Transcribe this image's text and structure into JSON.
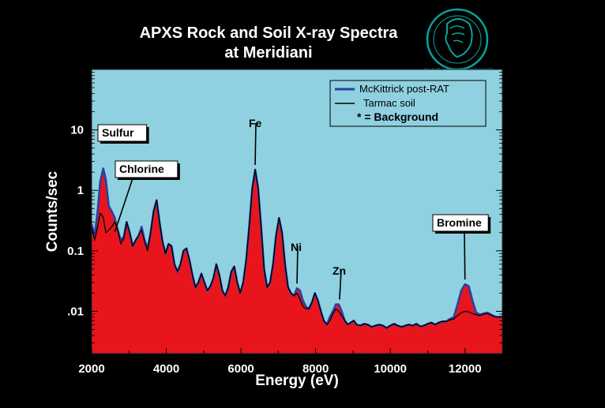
{
  "chart_data": {
    "type": "line",
    "title": "APXS Rock and Soil X-ray Spectra",
    "subtitle": "at Meridiani",
    "xlabel": "Energy (eV)",
    "ylabel": "Counts/sec",
    "xlim": [
      2000,
      13000
    ],
    "ylim": [
      0.002,
      100
    ],
    "yscale": "log",
    "x_ticks": [
      2000,
      4000,
      6000,
      8000,
      10000,
      12000
    ],
    "x_tick_labels": [
      "2000",
      "4000",
      "6000",
      "8000",
      "10000",
      "12000"
    ],
    "y_ticks": [
      0.01,
      0.1,
      1,
      10
    ],
    "y_tick_labels": [
      ".01",
      "0.1",
      "1",
      "10"
    ],
    "legend_position": "top-right",
    "legend_note": "* = Background",
    "colors": {
      "plot_bg": "#8fd1e0",
      "fill": "#e8151c",
      "mckittrick": "#2b3fa6",
      "tarmac": "#000000",
      "background": "#000000"
    },
    "series": [
      {
        "name": "McKittrick post-RAT",
        "color": "#2b3fa6",
        "x": [
          2000,
          2080,
          2160,
          2230,
          2310,
          2380,
          2460,
          2540,
          2620,
          2700,
          2780,
          2860,
          2940,
          3020,
          3100,
          3180,
          3260,
          3340,
          3420,
          3500,
          3580,
          3660,
          3740,
          3820,
          3900,
          3980,
          4060,
          4140,
          4220,
          4300,
          4380,
          4460,
          4540,
          4620,
          4700,
          4780,
          4860,
          4940,
          5020,
          5100,
          5180,
          5260,
          5340,
          5420,
          5500,
          5580,
          5660,
          5740,
          5820,
          5900,
          5980,
          6060,
          6140,
          6220,
          6300,
          6380,
          6460,
          6540,
          6620,
          6700,
          6780,
          6860,
          6940,
          7020,
          7100,
          7180,
          7260,
          7340,
          7420,
          7500,
          7580,
          7660,
          7740,
          7820,
          7900,
          7980,
          8060,
          8140,
          8220,
          8300,
          8380,
          8460,
          8540,
          8620,
          8700,
          8780,
          8860,
          8940,
          9020,
          9100,
          9200,
          9300,
          9400,
          9500,
          9600,
          9700,
          9800,
          9900,
          10000,
          10100,
          10200,
          10300,
          10400,
          10500,
          10600,
          10700,
          10800,
          10900,
          11000,
          11100,
          11200,
          11300,
          11400,
          11500,
          11600,
          11700,
          11800,
          11900,
          12000,
          12100,
          12200,
          12300,
          12400,
          12500,
          12600,
          12700,
          12800,
          12900,
          13000
        ],
        "y": [
          0.28,
          0.18,
          0.45,
          1.4,
          2.3,
          1.5,
          0.55,
          0.45,
          0.35,
          0.22,
          0.15,
          0.17,
          0.3,
          0.2,
          0.12,
          0.15,
          0.18,
          0.25,
          0.15,
          0.11,
          0.2,
          0.45,
          0.68,
          0.3,
          0.14,
          0.09,
          0.13,
          0.12,
          0.06,
          0.045,
          0.06,
          0.1,
          0.11,
          0.07,
          0.04,
          0.025,
          0.03,
          0.042,
          0.03,
          0.022,
          0.026,
          0.035,
          0.06,
          0.04,
          0.022,
          0.018,
          0.025,
          0.045,
          0.055,
          0.03,
          0.02,
          0.03,
          0.07,
          0.25,
          1.05,
          2.2,
          1.1,
          0.25,
          0.05,
          0.025,
          0.03,
          0.06,
          0.18,
          0.35,
          0.2,
          0.06,
          0.025,
          0.02,
          0.018,
          0.024,
          0.022,
          0.015,
          0.012,
          0.011,
          0.014,
          0.02,
          0.015,
          0.01,
          0.007,
          0.006,
          0.008,
          0.01,
          0.013,
          0.013,
          0.01,
          0.007,
          0.006,
          0.0065,
          0.007,
          0.006,
          0.0058,
          0.0062,
          0.006,
          0.0055,
          0.0058,
          0.006,
          0.0058,
          0.0053,
          0.0058,
          0.0062,
          0.0058,
          0.0055,
          0.0058,
          0.006,
          0.0058,
          0.0062,
          0.0056,
          0.0058,
          0.0062,
          0.0065,
          0.006,
          0.0065,
          0.0068,
          0.0068,
          0.0075,
          0.008,
          0.013,
          0.022,
          0.028,
          0.026,
          0.015,
          0.0095,
          0.0088,
          0.0092,
          0.0095,
          0.0088,
          0.0082,
          0.008,
          0.0082
        ]
      },
      {
        "name": "Tarmac soil",
        "color": "#000000",
        "x": [
          2000,
          2080,
          2160,
          2230,
          2310,
          2380,
          2460,
          2540,
          2620,
          2700,
          2780,
          2860,
          2940,
          3020,
          3100,
          3180,
          3260,
          3340,
          3420,
          3500,
          3580,
          3660,
          3740,
          3820,
          3900,
          3980,
          4060,
          4140,
          4220,
          4300,
          4380,
          4460,
          4540,
          4620,
          4700,
          4780,
          4860,
          4940,
          5020,
          5100,
          5180,
          5260,
          5340,
          5420,
          5500,
          5580,
          5660,
          5740,
          5820,
          5900,
          5980,
          6060,
          6140,
          6220,
          6300,
          6380,
          6460,
          6540,
          6620,
          6700,
          6780,
          6860,
          6940,
          7020,
          7100,
          7180,
          7260,
          7340,
          7420,
          7500,
          7580,
          7660,
          7740,
          7820,
          7900,
          7980,
          8060,
          8140,
          8220,
          8300,
          8380,
          8460,
          8540,
          8620,
          8700,
          8780,
          8860,
          8940,
          9020,
          9100,
          9200,
          9300,
          9400,
          9500,
          9600,
          9700,
          9800,
          9900,
          10000,
          10100,
          10200,
          10300,
          10400,
          10500,
          10600,
          10700,
          10800,
          10900,
          11000,
          11100,
          11200,
          11300,
          11400,
          11500,
          11600,
          11700,
          11800,
          11900,
          12000,
          12100,
          12200,
          12300,
          12400,
          12500,
          12600,
          12700,
          12800,
          12900,
          13000
        ],
        "y": [
          0.25,
          0.15,
          0.25,
          0.42,
          0.36,
          0.2,
          0.22,
          0.25,
          0.3,
          0.22,
          0.13,
          0.16,
          0.3,
          0.2,
          0.12,
          0.15,
          0.18,
          0.22,
          0.14,
          0.1,
          0.2,
          0.45,
          0.7,
          0.3,
          0.14,
          0.09,
          0.13,
          0.12,
          0.06,
          0.045,
          0.06,
          0.1,
          0.11,
          0.07,
          0.04,
          0.025,
          0.03,
          0.042,
          0.03,
          0.022,
          0.026,
          0.035,
          0.06,
          0.04,
          0.022,
          0.018,
          0.025,
          0.045,
          0.055,
          0.03,
          0.02,
          0.03,
          0.07,
          0.25,
          1.05,
          2.2,
          1.1,
          0.25,
          0.05,
          0.025,
          0.03,
          0.06,
          0.18,
          0.35,
          0.2,
          0.06,
          0.025,
          0.02,
          0.018,
          0.02,
          0.016,
          0.012,
          0.011,
          0.011,
          0.014,
          0.02,
          0.015,
          0.01,
          0.007,
          0.006,
          0.007,
          0.009,
          0.011,
          0.01,
          0.0085,
          0.007,
          0.006,
          0.0065,
          0.007,
          0.006,
          0.0058,
          0.0062,
          0.006,
          0.0055,
          0.0058,
          0.006,
          0.0058,
          0.0053,
          0.0058,
          0.0062,
          0.0058,
          0.0055,
          0.0058,
          0.006,
          0.0058,
          0.0062,
          0.0056,
          0.0058,
          0.0062,
          0.0065,
          0.006,
          0.0065,
          0.0068,
          0.0068,
          0.0072,
          0.0075,
          0.0085,
          0.0095,
          0.01,
          0.0098,
          0.0092,
          0.0088,
          0.0085,
          0.009,
          0.0092,
          0.0086,
          0.0082,
          0.008,
          0.0082
        ]
      }
    ],
    "annotations": [
      {
        "text": "Sulfur",
        "x": 2300,
        "y": 2.3
      },
      {
        "text": "Chlorine",
        "x": 2620,
        "y": 0.17
      },
      {
        "text": "Fe",
        "x": 6380,
        "y": 2.2
      },
      {
        "text": "Ni",
        "x": 7500,
        "y": 0.024
      },
      {
        "text": "Zn",
        "x": 8640,
        "y": 0.013
      },
      {
        "text": "Bromine",
        "x": 12000,
        "y": 0.028
      }
    ]
  },
  "logo": {
    "name": "max-planck-seal-icon",
    "text": "MAX-PLANCK-GESELLSCHAFT"
  }
}
